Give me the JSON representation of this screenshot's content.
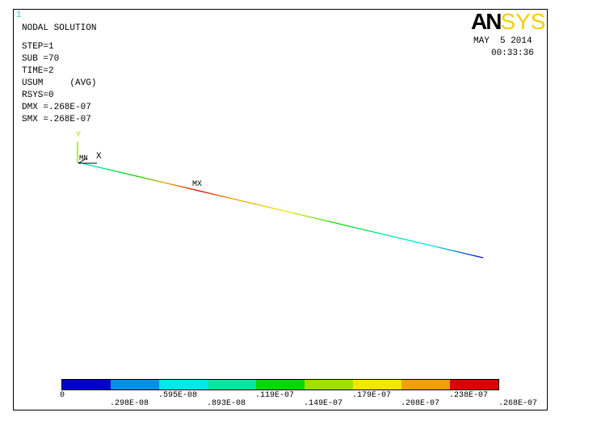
{
  "window_number": "1",
  "logo": {
    "an": "AN",
    "sys": "SYS"
  },
  "header": {
    "title": "NODAL SOLUTION",
    "lines": [
      "STEP=1",
      "SUB =70",
      "TIME=2",
      "USUM     (AVG)",
      "RSYS=0",
      "DMX =.268E-07",
      "SMX =.268E-07"
    ]
  },
  "datetime": {
    "date": "MAY  5 2014",
    "time": "00:33:36"
  },
  "axes": {
    "y": "Y",
    "x": "X",
    "mn": "MN"
  },
  "mx_label": "MX",
  "legend": {
    "colors": [
      "#0000d0",
      "#0090e8",
      "#00e8e8",
      "#00e8a0",
      "#00d800",
      "#a0e000",
      "#f0e800",
      "#f0a000",
      "#e00000"
    ],
    "ticks_top": [
      "0",
      ".595E-08",
      ".119E-07",
      ".179E-07",
      ".238E-07"
    ],
    "ticks_bottom": [
      ".298E-08",
      ".893E-08",
      ".149E-07",
      ".208E-07",
      ".268E-07"
    ]
  }
}
